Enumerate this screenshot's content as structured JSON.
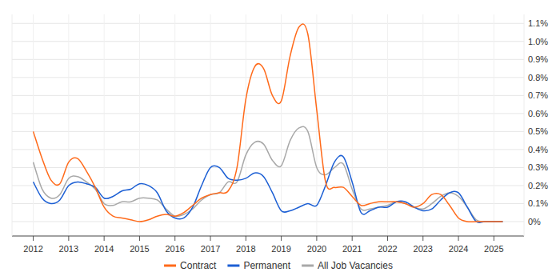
{
  "chart_data": {
    "type": "line",
    "x": [
      2012,
      2012.25,
      2012.5,
      2012.75,
      2013,
      2013.25,
      2013.5,
      2013.75,
      2014,
      2014.25,
      2014.5,
      2014.75,
      2015,
      2015.25,
      2015.5,
      2015.75,
      2016,
      2016.25,
      2016.5,
      2016.75,
      2017,
      2017.25,
      2017.5,
      2017.75,
      2018,
      2018.25,
      2018.5,
      2018.75,
      2019,
      2019.25,
      2019.5,
      2019.75,
      2020,
      2020.25,
      2020.5,
      2020.75,
      2021,
      2021.25,
      2021.5,
      2021.75,
      2022,
      2022.25,
      2022.5,
      2022.75,
      2023,
      2023.25,
      2023.5,
      2023.75,
      2024,
      2024.25,
      2024.5,
      2024.75,
      2025,
      2025.25
    ],
    "series": [
      {
        "name": "Contract",
        "color": "#ff6a1a",
        "values": [
          0.5,
          0.35,
          0.23,
          0.21,
          0.33,
          0.35,
          0.28,
          0.19,
          0.08,
          0.03,
          0.02,
          0.01,
          0.0,
          0.01,
          0.03,
          0.04,
          0.03,
          0.05,
          0.09,
          0.13,
          0.15,
          0.16,
          0.17,
          0.3,
          0.68,
          0.86,
          0.85,
          0.7,
          0.67,
          0.92,
          1.08,
          1.04,
          0.62,
          0.22,
          0.19,
          0.19,
          0.14,
          0.09,
          0.1,
          0.11,
          0.11,
          0.11,
          0.1,
          0.08,
          0.1,
          0.15,
          0.15,
          0.09,
          0.02,
          0.0,
          0.0,
          0.0,
          0.0,
          0.0
        ]
      },
      {
        "name": "Permanent",
        "color": "#1c5fd4",
        "values": [
          0.22,
          0.13,
          0.1,
          0.12,
          0.2,
          0.22,
          0.21,
          0.19,
          0.13,
          0.14,
          0.17,
          0.18,
          0.21,
          0.2,
          0.16,
          0.06,
          0.02,
          0.02,
          0.08,
          0.2,
          0.3,
          0.3,
          0.24,
          0.23,
          0.24,
          0.27,
          0.25,
          0.16,
          0.06,
          0.06,
          0.08,
          0.1,
          0.09,
          0.2,
          0.33,
          0.36,
          0.22,
          0.05,
          0.06,
          0.08,
          0.08,
          0.11,
          0.11,
          0.08,
          0.06,
          0.07,
          0.12,
          0.16,
          0.16,
          0.08,
          0.0,
          0.0,
          0.0,
          0.0
        ]
      },
      {
        "name": "All Job Vacancies",
        "color": "#a8a8a8",
        "values": [
          0.33,
          0.18,
          0.13,
          0.15,
          0.24,
          0.25,
          0.22,
          0.18,
          0.1,
          0.09,
          0.11,
          0.11,
          0.13,
          0.13,
          0.12,
          0.07,
          0.03,
          0.04,
          0.07,
          0.12,
          0.15,
          0.16,
          0.22,
          0.22,
          0.37,
          0.44,
          0.43,
          0.34,
          0.31,
          0.45,
          0.52,
          0.5,
          0.3,
          0.26,
          0.3,
          0.32,
          0.18,
          0.07,
          0.07,
          0.08,
          0.09,
          0.11,
          0.1,
          0.08,
          0.07,
          0.1,
          0.14,
          0.16,
          0.14,
          0.08,
          0.01,
          0.0,
          0.0,
          0.0
        ]
      }
    ],
    "xlim": [
      2011.4,
      2025.85
    ],
    "xticks": [
      2012,
      2013,
      2014,
      2015,
      2016,
      2017,
      2018,
      2019,
      2020,
      2021,
      2022,
      2023,
      2024,
      2025
    ],
    "ylim": [
      -0.08,
      1.15
    ],
    "yticks": [
      {
        "value": 0,
        "label": "0%"
      },
      {
        "value": 0.1,
        "label": "0.1%"
      },
      {
        "value": 0.2,
        "label": "0.2%"
      },
      {
        "value": 0.3,
        "label": "0.3%"
      },
      {
        "value": 0.4,
        "label": "0.4%"
      },
      {
        "value": 0.5,
        "label": "0.5%"
      },
      {
        "value": 0.6,
        "label": "0.6%"
      },
      {
        "value": 0.7,
        "label": "0.7%"
      },
      {
        "value": 0.8,
        "label": "0.8%"
      },
      {
        "value": 0.9,
        "label": "0.9%"
      },
      {
        "value": 1,
        "label": "1.0%"
      },
      {
        "value": 1.1,
        "label": "1.1%"
      }
    ],
    "grid": true,
    "legend": "bottom"
  }
}
